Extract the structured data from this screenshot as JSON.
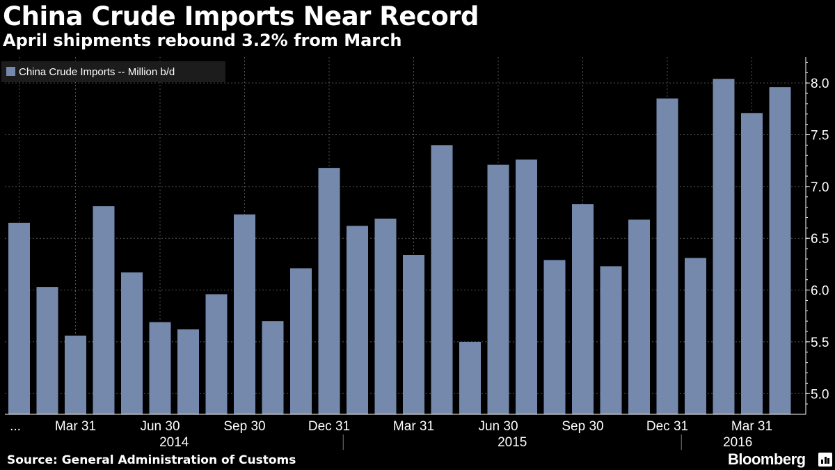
{
  "header": {
    "title": "China Crude Imports Near Record",
    "subtitle": "April shipments rebound 3.2% from March"
  },
  "footer": {
    "source": "Source: General Administration of Customs",
    "brand": "Bloomberg"
  },
  "colors": {
    "background": "#000000",
    "bar": "#7589ad",
    "text": "#ffffff",
    "grid": "#555555"
  },
  "chart_data": {
    "type": "bar",
    "legend": [
      "China Crude Imports -- Million b/d"
    ],
    "legend_position": "top-left",
    "series": [
      {
        "name": "China Crude Imports -- Million b/d",
        "values": [
          6.65,
          6.03,
          5.56,
          6.81,
          6.17,
          5.69,
          5.62,
          5.96,
          6.73,
          5.7,
          6.21,
          7.18,
          6.62,
          6.69,
          6.34,
          7.4,
          5.5,
          7.21,
          7.26,
          6.29,
          6.83,
          6.23,
          6.68,
          7.85,
          6.31,
          8.04,
          7.71,
          7.96
        ]
      }
    ],
    "x_tick_labels": [
      "...",
      "Mar 31",
      "Jun 30",
      "Sep 30",
      "Dec 31",
      "Mar 31",
      "Jun 30",
      "Sep 30",
      "Dec 31",
      "Mar 31"
    ],
    "x_tick_bar_index": [
      0,
      2,
      5,
      8,
      11,
      14,
      17,
      20,
      23,
      26
    ],
    "x_year_labels": [
      "2014",
      "2015",
      "2016"
    ],
    "x_year_bar_spans": [
      [
        0,
        11
      ],
      [
        12,
        23
      ],
      [
        24,
        27
      ]
    ],
    "y_ticks": [
      5.0,
      5.5,
      6.0,
      6.5,
      7.0,
      7.5,
      8.0
    ],
    "ylim": [
      4.8,
      8.25
    ],
    "y_axis_position": "right",
    "grid": true
  }
}
